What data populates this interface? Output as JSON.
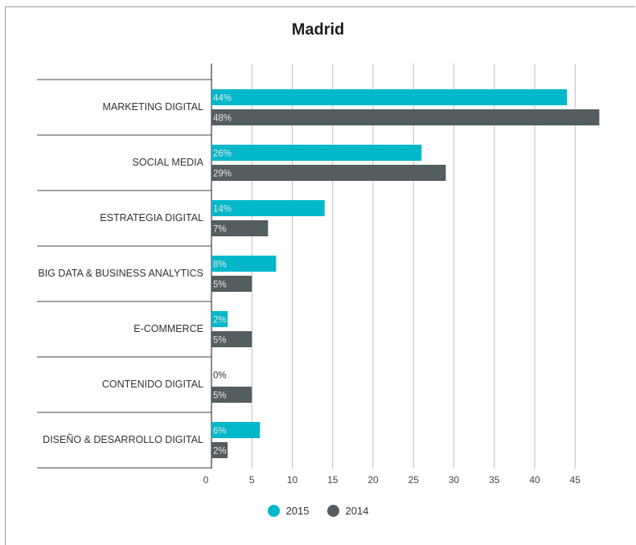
{
  "colors": {
    "series_2015": "#00b8c9",
    "series_2014": "#545d60",
    "grid": "#bdbdbd",
    "axis": "#555555"
  },
  "chart_data": {
    "type": "bar",
    "orientation": "horizontal",
    "title": "Madrid",
    "categories": [
      "MARKETING DIGITAL",
      "SOCIAL MEDIA",
      "ESTRATEGIA DIGITAL",
      "BIG DATA & BUSINESS ANALYTICS",
      "E-COMMERCE",
      "CONTENIDO DIGITAL",
      "DISEÑO & DESARROLLO DIGITAL"
    ],
    "series": [
      {
        "name": "2015",
        "values": [
          44,
          26,
          14,
          8,
          2,
          0,
          6
        ],
        "labels": [
          "44%",
          "26%",
          "14%",
          "8%",
          "2%",
          "0%",
          "6%"
        ]
      },
      {
        "name": "2014",
        "values": [
          48,
          29,
          7,
          5,
          5,
          5,
          2
        ],
        "labels": [
          "48%",
          "29%",
          "7%",
          "5%",
          "5%",
          "5%",
          "2%"
        ]
      }
    ],
    "xticks": [
      "0",
      "5",
      "10",
      "15",
      "20",
      "25",
      "30",
      "35",
      "40",
      "45"
    ],
    "xlim": [
      0,
      50
    ],
    "grid": true,
    "legend_position": "bottom"
  }
}
